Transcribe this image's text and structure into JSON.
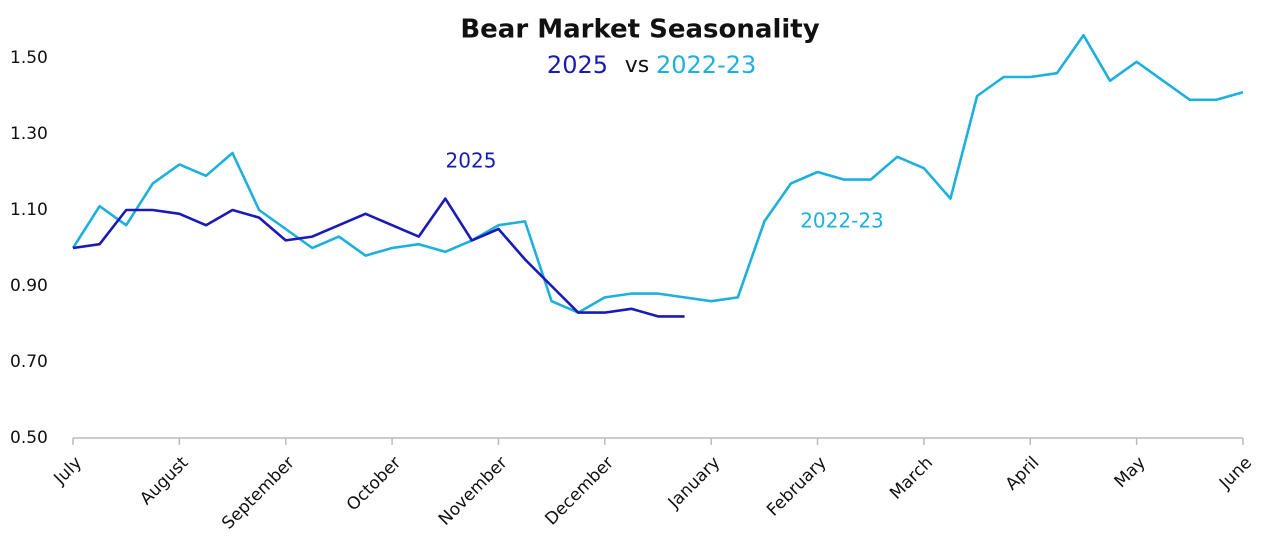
{
  "chart_data": {
    "type": "line",
    "title": "Bear Market Seasonality",
    "subtitle_joiner": "vs",
    "annotations": [
      "2025",
      "2022-23"
    ],
    "x": [
      0,
      0.25,
      0.5,
      0.75,
      1,
      1.25,
      1.5,
      1.75,
      2,
      2.25,
      2.5,
      2.75,
      3,
      3.25,
      3.5,
      3.75,
      4,
      4.25,
      4.5,
      4.75,
      5,
      5.25,
      5.5,
      5.75,
      6,
      6.25,
      6.5,
      6.75,
      7,
      7.25,
      7.5,
      7.75,
      8,
      8.25,
      8.5,
      8.75,
      9,
      9.25,
      9.5,
      9.75,
      10,
      10.25,
      10.5,
      10.75,
      11
    ],
    "series": [
      {
        "name": "2025",
        "color": "#1a1ab8",
        "values": [
          1.0,
          1.01,
          1.1,
          1.1,
          1.09,
          1.06,
          1.1,
          1.08,
          1.02,
          1.03,
          1.06,
          1.09,
          1.06,
          1.03,
          1.13,
          1.02,
          1.05,
          0.97,
          0.9,
          0.83,
          0.83,
          0.84,
          0.82,
          0.82,
          null,
          null,
          null,
          null,
          null,
          null,
          null,
          null,
          null,
          null,
          null,
          null,
          null,
          null,
          null,
          null,
          null,
          null,
          null,
          null,
          null
        ]
      },
      {
        "name": "2022-23",
        "color": "#1eb0dc",
        "values": [
          1.0,
          1.11,
          1.06,
          1.17,
          1.22,
          1.19,
          1.25,
          1.1,
          1.05,
          1.0,
          1.03,
          0.98,
          1.0,
          1.01,
          0.99,
          1.02,
          1.06,
          1.07,
          0.86,
          0.83,
          0.87,
          0.88,
          0.88,
          0.87,
          0.86,
          0.87,
          1.07,
          1.17,
          1.2,
          1.18,
          1.18,
          1.24,
          1.21,
          1.13,
          1.4,
          1.45,
          1.45,
          1.46,
          1.56,
          1.44,
          1.49,
          1.44,
          1.39,
          1.39,
          1.41
        ]
      }
    ],
    "xlim": [
      0,
      11
    ],
    "xticks": [
      {
        "value": 0,
        "label": "July"
      },
      {
        "value": 1,
        "label": "August"
      },
      {
        "value": 2,
        "label": "September"
      },
      {
        "value": 3,
        "label": "October"
      },
      {
        "value": 4,
        "label": "November"
      },
      {
        "value": 5,
        "label": "December"
      },
      {
        "value": 6,
        "label": "January"
      },
      {
        "value": 7,
        "label": "February"
      },
      {
        "value": 8,
        "label": "March"
      },
      {
        "value": 9,
        "label": "April"
      },
      {
        "value": 10,
        "label": "May"
      },
      {
        "value": 11,
        "label": "June"
      }
    ],
    "ylim": [
      0.5,
      1.5
    ],
    "yticks": [
      {
        "value": 0.5,
        "label": "0.50"
      },
      {
        "value": 0.7,
        "label": "0.70"
      },
      {
        "value": 0.9,
        "label": "0.90"
      },
      {
        "value": 1.1,
        "label": "1.10"
      },
      {
        "value": 1.3,
        "label": "1.30"
      },
      {
        "value": 1.5,
        "label": "1.50"
      }
    ],
    "grid": false
  }
}
